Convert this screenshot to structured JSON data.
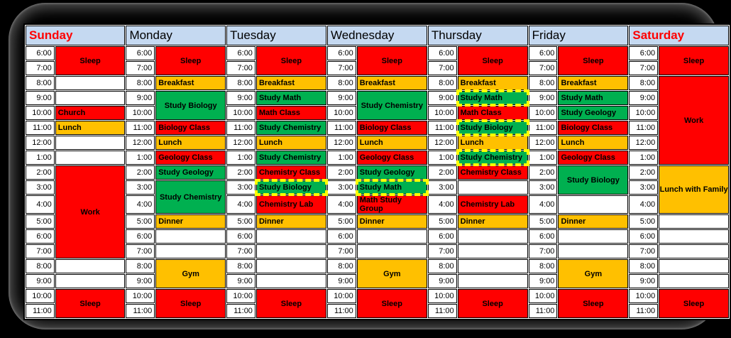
{
  "frame": {
    "background": "#000000",
    "panel_background": "#000000"
  },
  "colors": {
    "red": "#FF0000",
    "orange": "#FFC000",
    "green": "#00B050",
    "header_bg": "#C5D9F1",
    "weekend_text": "#FF0000",
    "weekday_text": "#000000",
    "cell_bg": "#FFFFFF",
    "grid": "#000000",
    "highlight": "#FFFF00"
  },
  "times": [
    "6:00",
    "7:00",
    "8:00",
    "9:00",
    "10:00",
    "11:00",
    "12:00",
    "1:00",
    "2:00",
    "3:00",
    "4:00",
    "5:00",
    "6:00",
    "7:00",
    "8:00",
    "9:00",
    "10:00",
    "11:00"
  ],
  "days": [
    {
      "label": "Sunday",
      "weekend": true,
      "blocks": [
        {
          "start": 0,
          "span": 2,
          "label": "Sleep",
          "color": "red",
          "center": true
        },
        {
          "start": 4,
          "span": 1,
          "label": "Church",
          "color": "red"
        },
        {
          "start": 5,
          "span": 1,
          "label": "Lunch",
          "color": "orange"
        },
        {
          "start": 8,
          "span": 6,
          "label": "Work",
          "color": "red",
          "center": true
        },
        {
          "start": 16,
          "span": 2,
          "label": "Sleep",
          "color": "red",
          "center": true
        }
      ]
    },
    {
      "label": "Monday",
      "weekend": false,
      "blocks": [
        {
          "start": 0,
          "span": 2,
          "label": "Sleep",
          "color": "red",
          "center": true
        },
        {
          "start": 2,
          "span": 1,
          "label": "Breakfast",
          "color": "orange"
        },
        {
          "start": 3,
          "span": 2,
          "label": "Study Biology",
          "color": "green",
          "center": true
        },
        {
          "start": 5,
          "span": 1,
          "label": "Biology Class",
          "color": "red"
        },
        {
          "start": 6,
          "span": 1,
          "label": "Lunch",
          "color": "orange"
        },
        {
          "start": 7,
          "span": 1,
          "label": "Geology Class",
          "color": "red"
        },
        {
          "start": 8,
          "span": 1,
          "label": "Study Geology",
          "color": "green"
        },
        {
          "start": 9,
          "span": 2,
          "label": "Study Chemistry",
          "color": "green",
          "center": true
        },
        {
          "start": 11,
          "span": 1,
          "label": "Dinner",
          "color": "orange"
        },
        {
          "start": 14,
          "span": 2,
          "label": "Gym",
          "color": "orange",
          "center": true
        },
        {
          "start": 16,
          "span": 2,
          "label": "Sleep",
          "color": "red",
          "center": true
        }
      ]
    },
    {
      "label": "Tuesday",
      "weekend": false,
      "blocks": [
        {
          "start": 0,
          "span": 2,
          "label": "Sleep",
          "color": "red",
          "center": true
        },
        {
          "start": 2,
          "span": 1,
          "label": "Breakfast",
          "color": "orange"
        },
        {
          "start": 3,
          "span": 1,
          "label": "Study Math",
          "color": "green"
        },
        {
          "start": 4,
          "span": 1,
          "label": "Math Class",
          "color": "red"
        },
        {
          "start": 5,
          "span": 1,
          "label": "Study Chemistry",
          "color": "green"
        },
        {
          "start": 6,
          "span": 1,
          "label": "Lunch",
          "color": "orange"
        },
        {
          "start": 7,
          "span": 1,
          "label": "Study Chemistry",
          "color": "green"
        },
        {
          "start": 8,
          "span": 1,
          "label": "Chemistry Class",
          "color": "red"
        },
        {
          "start": 9,
          "span": 1,
          "label": "Study Biology",
          "color": "green",
          "highlight": true
        },
        {
          "start": 10,
          "span": 1,
          "label": "Chemistry Lab",
          "color": "red"
        },
        {
          "start": 11,
          "span": 1,
          "label": "Dinner",
          "color": "orange"
        },
        {
          "start": 16,
          "span": 2,
          "label": "Sleep",
          "color": "red",
          "center": true
        }
      ]
    },
    {
      "label": "Wednesday",
      "weekend": false,
      "blocks": [
        {
          "start": 0,
          "span": 2,
          "label": "Sleep",
          "color": "red",
          "center": true
        },
        {
          "start": 2,
          "span": 1,
          "label": "Breakfast",
          "color": "orange"
        },
        {
          "start": 3,
          "span": 2,
          "label": "Study Chemistry",
          "color": "green",
          "center": true
        },
        {
          "start": 5,
          "span": 1,
          "label": "Biology Class",
          "color": "red"
        },
        {
          "start": 6,
          "span": 1,
          "label": "Lunch",
          "color": "orange"
        },
        {
          "start": 7,
          "span": 1,
          "label": "Geology Class",
          "color": "red"
        },
        {
          "start": 8,
          "span": 1,
          "label": "Study Geology",
          "color": "green"
        },
        {
          "start": 9,
          "span": 1,
          "label": "Study Math",
          "color": "green",
          "highlight": true
        },
        {
          "start": 10,
          "span": 1,
          "label": "Math Study Group",
          "color": "red"
        },
        {
          "start": 11,
          "span": 1,
          "label": "Dinner",
          "color": "orange"
        },
        {
          "start": 14,
          "span": 2,
          "label": "Gym",
          "color": "orange",
          "center": true
        },
        {
          "start": 16,
          "span": 2,
          "label": "Sleep",
          "color": "red",
          "center": true
        }
      ]
    },
    {
      "label": "Thursday",
      "weekend": false,
      "blocks": [
        {
          "start": 0,
          "span": 2,
          "label": "Sleep",
          "color": "red",
          "center": true
        },
        {
          "start": 2,
          "span": 1,
          "label": "Breakfast",
          "color": "orange"
        },
        {
          "start": 3,
          "span": 1,
          "label": "Study Math",
          "color": "green",
          "highlight": true
        },
        {
          "start": 4,
          "span": 1,
          "label": "Math Class",
          "color": "red"
        },
        {
          "start": 5,
          "span": 1,
          "label": "Study Biology",
          "color": "green",
          "highlight": true
        },
        {
          "start": 6,
          "span": 1,
          "label": "Lunch",
          "color": "orange"
        },
        {
          "start": 7,
          "span": 1,
          "label": "Study Chemistry",
          "color": "green",
          "highlight": true
        },
        {
          "start": 8,
          "span": 1,
          "label": "Chemistry Class",
          "color": "red"
        },
        {
          "start": 10,
          "span": 1,
          "label": "Chemistry Lab",
          "color": "red"
        },
        {
          "start": 11,
          "span": 1,
          "label": "Dinner",
          "color": "orange"
        },
        {
          "start": 16,
          "span": 2,
          "label": "Sleep",
          "color": "red",
          "center": true
        }
      ]
    },
    {
      "label": "Friday",
      "weekend": false,
      "blocks": [
        {
          "start": 0,
          "span": 2,
          "label": "Sleep",
          "color": "red",
          "center": true
        },
        {
          "start": 2,
          "span": 1,
          "label": "Breakfast",
          "color": "orange"
        },
        {
          "start": 3,
          "span": 1,
          "label": "Study Math",
          "color": "green"
        },
        {
          "start": 4,
          "span": 1,
          "label": "Study Geology",
          "color": "green"
        },
        {
          "start": 5,
          "span": 1,
          "label": "Biology Class",
          "color": "red"
        },
        {
          "start": 6,
          "span": 1,
          "label": "Lunch",
          "color": "orange"
        },
        {
          "start": 7,
          "span": 1,
          "label": "Geology Class",
          "color": "red"
        },
        {
          "start": 8,
          "span": 2,
          "label": "Study Biology",
          "color": "green",
          "center": true
        },
        {
          "start": 11,
          "span": 1,
          "label": "Dinner",
          "color": "orange"
        },
        {
          "start": 14,
          "span": 2,
          "label": "Gym",
          "color": "orange",
          "center": true
        },
        {
          "start": 16,
          "span": 2,
          "label": "Sleep",
          "color": "red",
          "center": true
        }
      ]
    },
    {
      "label": "Saturday",
      "weekend": true,
      "blocks": [
        {
          "start": 0,
          "span": 2,
          "label": "Sleep",
          "color": "red",
          "center": true
        },
        {
          "start": 2,
          "span": 6,
          "label": "Work",
          "color": "red",
          "center": true
        },
        {
          "start": 8,
          "span": 3,
          "label": "Lunch with Family",
          "color": "orange",
          "center": true
        },
        {
          "start": 16,
          "span": 2,
          "label": "Sleep",
          "color": "red",
          "center": true
        }
      ]
    }
  ]
}
